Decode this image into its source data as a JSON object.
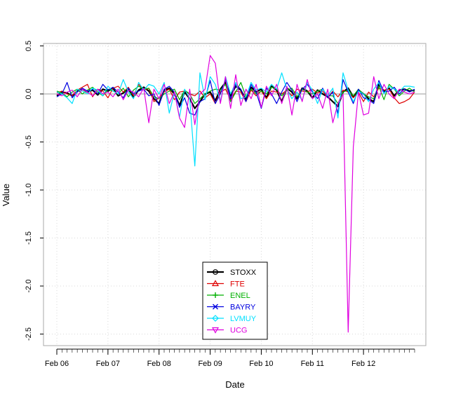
{
  "chart_data": {
    "type": "line",
    "xlabel": "Date",
    "ylabel": "Value",
    "xlim": [
      0,
      7.15
    ],
    "ylim": [
      -2.55,
      0.5
    ],
    "grid": true,
    "legend_position": "bottom-center",
    "x_ticks": [
      {
        "pos": 0,
        "label": "Feb 06"
      },
      {
        "pos": 1,
        "label": "Feb 07"
      },
      {
        "pos": 2,
        "label": "Feb 08"
      },
      {
        "pos": 3,
        "label": "Feb 09"
      },
      {
        "pos": 4,
        "label": "Feb 10"
      },
      {
        "pos": 5,
        "label": "Feb 11"
      },
      {
        "pos": 6,
        "label": "Feb 12"
      }
    ],
    "y_ticks": [
      {
        "value": 0.5,
        "label": "0.5"
      },
      {
        "value": 0.0,
        "label": "0.0"
      },
      {
        "value": -0.5,
        "label": "-0.5"
      },
      {
        "value": -1.0,
        "label": "-1.0"
      },
      {
        "value": -1.5,
        "label": "-1.5"
      },
      {
        "value": -2.0,
        "label": "-2.0"
      },
      {
        "value": -2.5,
        "label": "-2.5"
      }
    ],
    "x": [
      0.0,
      0.1,
      0.2,
      0.3,
      0.4,
      0.5,
      0.6,
      0.7,
      0.8,
      0.9,
      1.0,
      1.1,
      1.2,
      1.3,
      1.4,
      1.5,
      1.6,
      1.7,
      1.8,
      1.9,
      2.0,
      2.1,
      2.2,
      2.3,
      2.4,
      2.5,
      2.6,
      2.7,
      2.8,
      2.9,
      3.0,
      3.1,
      3.2,
      3.3,
      3.4,
      3.5,
      3.6,
      3.7,
      3.8,
      3.9,
      4.0,
      4.1,
      4.2,
      4.3,
      4.4,
      4.5,
      4.6,
      4.7,
      4.8,
      4.9,
      5.0,
      5.1,
      5.2,
      5.3,
      5.4,
      5.5,
      5.6,
      5.7,
      5.8,
      5.9,
      6.0,
      6.1,
      6.2,
      6.3,
      6.4,
      6.5,
      6.6,
      6.7,
      6.8,
      6.9,
      7.0
    ],
    "series": [
      {
        "name": "STOXX",
        "color": "#000000",
        "marker": "circle",
        "width": 2.2,
        "values": [
          -0.02,
          0.02,
          0.01,
          -0.02,
          0.03,
          0.05,
          0.02,
          0.04,
          -0.01,
          0.05,
          0.03,
          0.06,
          -0.02,
          0.01,
          0.05,
          -0.03,
          0.04,
          0.07,
          0.03,
          -0.05,
          -0.1,
          0.04,
          0.06,
          0.0,
          -0.12,
          0.02,
          -0.05,
          -0.15,
          -0.08,
          0.0,
          0.02,
          -0.07,
          0.05,
          0.12,
          -0.02,
          0.08,
          0.04,
          -0.06,
          0.07,
          0.02,
          0.05,
          -0.04,
          0.08,
          0.04,
          -0.08,
          0.06,
          0.02,
          -0.05,
          0.06,
          0.03,
          -0.04,
          0.04,
          0.0,
          -0.03,
          -0.08,
          -0.13,
          0.02,
          0.06,
          -0.03,
          0.04,
          0.0,
          -0.05,
          -0.08,
          0.1,
          0.03,
          0.06,
          -0.02,
          0.04,
          0.05,
          0.03,
          0.04
        ]
      },
      {
        "name": "FTE",
        "color": "#df0000",
        "marker": "triangle",
        "width": 1.2,
        "values": [
          0.01,
          0.03,
          0.0,
          -0.02,
          0.04,
          0.07,
          0.1,
          -0.03,
          0.05,
          0.03,
          -0.04,
          0.06,
          0.08,
          0.02,
          0.07,
          -0.02,
          0.1,
          0.04,
          0.06,
          -0.08,
          -0.04,
          0.02,
          0.05,
          -0.06,
          0.02,
          0.03,
          0.0,
          -0.02,
          0.03,
          -0.04,
          0.0,
          -0.1,
          0.02,
          0.05,
          -0.06,
          0.03,
          0.02,
          -0.08,
          0.04,
          -0.02,
          0.03,
          -0.05,
          0.03,
          0.02,
          0.0,
          0.04,
          -0.02,
          0.05,
          0.03,
          0.02,
          0.05,
          0.01,
          0.03,
          -0.04,
          0.03,
          -0.03,
          0.04,
          0.02,
          -0.04,
          0.02,
          -0.08,
          0.02,
          -0.03,
          0.06,
          0.04,
          0.05,
          -0.04,
          -0.1,
          -0.08,
          -0.05,
          0.02
        ]
      },
      {
        "name": "ENEL",
        "color": "#00b000",
        "marker": "plus",
        "width": 1.2,
        "values": [
          0.03,
          0.01,
          -0.03,
          0.02,
          0.05,
          0.0,
          0.04,
          0.07,
          0.02,
          -0.02,
          0.05,
          0.03,
          0.0,
          0.06,
          -0.03,
          0.04,
          0.08,
          0.05,
          0.06,
          -0.03,
          -0.05,
          0.0,
          0.03,
          0.05,
          -0.06,
          0.04,
          0.0,
          -0.1,
          -0.05,
          0.0,
          0.03,
          0.05,
          0.04,
          0.1,
          -0.08,
          0.02,
          0.12,
          -0.03,
          0.05,
          0.0,
          0.03,
          0.0,
          0.07,
          0.05,
          -0.02,
          0.04,
          0.06,
          -0.03,
          0.05,
          0.02,
          0.0,
          0.03,
          0.05,
          -0.02,
          -0.02,
          -0.1,
          0.02,
          0.04,
          -0.02,
          0.05,
          0.0,
          -0.03,
          -0.05,
          0.08,
          -0.06,
          0.1,
          0.05,
          -0.02,
          0.03,
          0.06,
          0.02
        ]
      },
      {
        "name": "BAYRY",
        "color": "#0000e0",
        "marker": "x",
        "width": 1.2,
        "values": [
          -0.03,
          0.0,
          0.12,
          -0.04,
          0.02,
          0.06,
          0.03,
          0.05,
          0.0,
          0.1,
          0.04,
          0.07,
          0.02,
          -0.04,
          0.06,
          0.0,
          0.03,
          0.05,
          -0.02,
          0.0,
          -0.12,
          0.05,
          0.08,
          0.02,
          -0.14,
          -0.04,
          -0.2,
          -0.22,
          -0.08,
          -0.05,
          0.14,
          -0.1,
          0.0,
          0.15,
          -0.05,
          0.1,
          0.05,
          -0.08,
          0.1,
          0.02,
          -0.15,
          0.06,
          0.0,
          -0.1,
          0.02,
          0.12,
          0.04,
          -0.08,
          0.05,
          0.1,
          0.02,
          -0.05,
          0.06,
          -0.04,
          0.02,
          -0.2,
          0.15,
          0.02,
          -0.1,
          0.05,
          -0.04,
          -0.06,
          -0.1,
          0.14,
          0.02,
          0.03,
          0.07,
          0.0,
          0.05,
          0.02,
          0.05
        ]
      },
      {
        "name": "LVMUY",
        "color": "#00e0ff",
        "marker": "diamond",
        "width": 1.2,
        "values": [
          0.02,
          0.0,
          -0.04,
          -0.1,
          0.05,
          0.03,
          0.0,
          0.06,
          0.04,
          -0.02,
          0.08,
          0.03,
          0.0,
          0.15,
          0.02,
          -0.05,
          0.12,
          0.04,
          0.1,
          0.08,
          0.0,
          0.12,
          -0.2,
          0.02,
          -0.24,
          0.05,
          -0.05,
          -0.75,
          0.22,
          -0.06,
          0.18,
          0.1,
          -0.08,
          0.18,
          0.0,
          0.12,
          -0.05,
          -0.03,
          0.12,
          0.04,
          0.06,
          0.02,
          0.1,
          0.05,
          0.22,
          0.05,
          -0.05,
          0.02,
          -0.07,
          0.12,
          0.04,
          -0.1,
          0.05,
          -0.02,
          0.06,
          -0.25,
          0.22,
          0.04,
          -0.08,
          0.03,
          0.0,
          -0.08,
          0.05,
          0.12,
          0.0,
          0.08,
          0.05,
          0.02,
          0.08,
          0.08,
          0.07
        ]
      },
      {
        "name": "UCG",
        "color": "#e000e0",
        "marker": "triangle-down",
        "width": 1.2,
        "values": [
          0.0,
          -0.02,
          0.02,
          0.04,
          -0.03,
          0.05,
          0.02,
          -0.02,
          0.05,
          0.0,
          0.02,
          -0.03,
          0.05,
          -0.06,
          0.04,
          0.02,
          -0.03,
          0.06,
          -0.3,
          0.05,
          -0.05,
          0.1,
          -0.1,
          0.02,
          -0.25,
          -0.35,
          0.05,
          -0.32,
          0.0,
          0.05,
          0.4,
          0.32,
          -0.1,
          0.18,
          -0.15,
          0.2,
          -0.12,
          0.05,
          -0.05,
          0.1,
          -0.14,
          0.08,
          -0.02,
          0.1,
          -0.1,
          0.08,
          -0.22,
          0.1,
          -0.08,
          0.15,
          -0.05,
          0.0,
          -0.15,
          0.05,
          -0.3,
          -0.1,
          0.0,
          -2.48,
          -0.55,
          0.02,
          -0.22,
          -0.2,
          0.18,
          -0.05,
          0.1,
          0.0,
          -0.05,
          0.05,
          0.02,
          0.0,
          0.02
        ]
      }
    ]
  }
}
